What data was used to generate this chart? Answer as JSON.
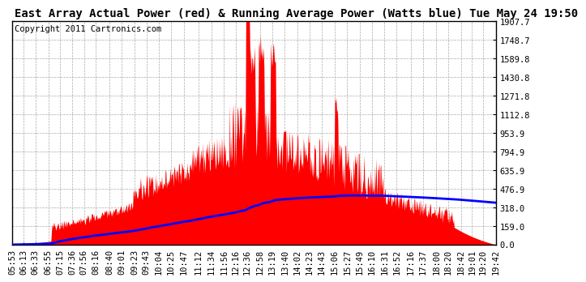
{
  "title": "East Array Actual Power (red) & Running Average Power (Watts blue) Tue May 24 19:50",
  "copyright": "Copyright 2011 Cartronics.com",
  "yticks": [
    0.0,
    159.0,
    318.0,
    476.9,
    635.9,
    794.9,
    953.9,
    1112.8,
    1271.8,
    1430.8,
    1589.8,
    1748.7,
    1907.7
  ],
  "ylim": [
    0,
    1907.7
  ],
  "xtick_labels": [
    "05:53",
    "06:13",
    "06:33",
    "06:55",
    "07:15",
    "07:36",
    "07:56",
    "08:16",
    "08:40",
    "09:01",
    "09:23",
    "09:43",
    "10:04",
    "10:25",
    "10:47",
    "11:12",
    "11:34",
    "11:56",
    "12:16",
    "12:36",
    "12:58",
    "13:19",
    "13:40",
    "14:02",
    "14:23",
    "14:43",
    "15:06",
    "15:27",
    "15:49",
    "16:10",
    "16:31",
    "16:52",
    "17:16",
    "17:37",
    "18:00",
    "18:20",
    "18:42",
    "19:01",
    "19:20",
    "19:42"
  ],
  "fill_color": "#FF0000",
  "line_color": "#0000FF",
  "background_color": "#FFFFFF",
  "grid_color": "#AAAAAA",
  "title_fontsize": 10,
  "copyright_fontsize": 7.5,
  "tick_fontsize": 7.5
}
